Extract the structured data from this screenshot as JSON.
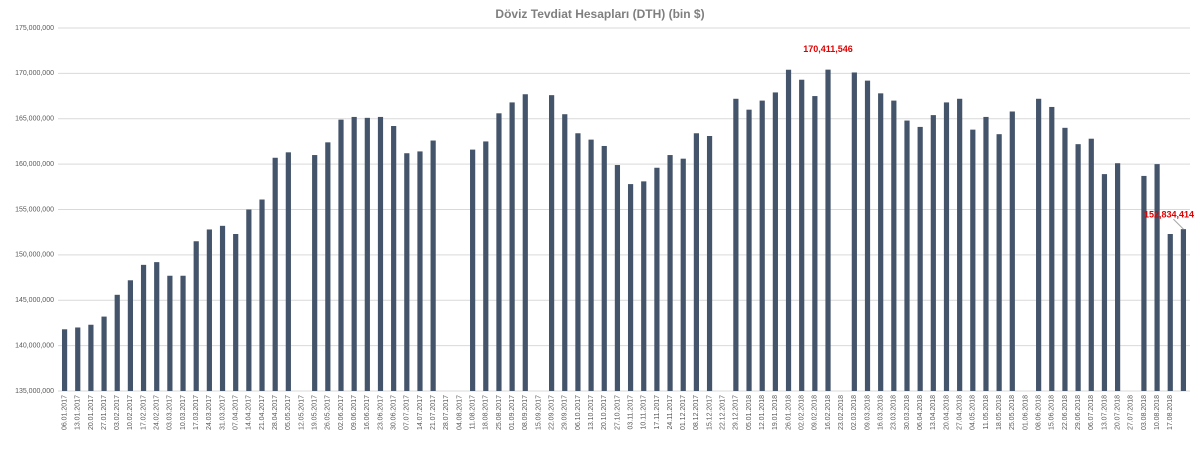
{
  "chart_data": {
    "type": "bar",
    "title": "Döviz Tevdiat Hesapları (DTH) (bin $)",
    "categories": [
      "06.01.2017",
      "13.01.2017",
      "20.01.2017",
      "27.01.2017",
      "03.02.2017",
      "10.02.2017",
      "17.02.2017",
      "24.02.2017",
      "03.03.2017",
      "10.03.2017",
      "17.03.2017",
      "24.03.2017",
      "31.03.2017",
      "07.04.2017",
      "14.04.2017",
      "21.04.2017",
      "28.04.2017",
      "05.05.2017",
      "12.05.2017",
      "19.05.2017",
      "26.05.2017",
      "02.06.2017",
      "09.06.2017",
      "16.06.2017",
      "23.06.2017",
      "30.06.2017",
      "07.07.2017",
      "14.07.2017",
      "21.07.2017",
      "28.07.2017",
      "04.08.2017",
      "11.08.2017",
      "18.08.2017",
      "25.08.2017",
      "01.09.2017",
      "08.09.2017",
      "15.09.2017",
      "22.09.2017",
      "29.09.2017",
      "06.10.2017",
      "13.10.2017",
      "20.10.2017",
      "27.10.2017",
      "03.11.2017",
      "10.11.2017",
      "17.11.2017",
      "24.11.2017",
      "01.12.2017",
      "08.12.2017",
      "15.12.2017",
      "22.12.2017",
      "29.12.2017",
      "05.01.2018",
      "12.01.2018",
      "19.01.2018",
      "26.01.2018",
      "02.02.2018",
      "09.02.2018",
      "16.02.2018",
      "23.02.2018",
      "02.03.2018",
      "09.03.2018",
      "16.03.2018",
      "23.03.2018",
      "30.03.2018",
      "06.04.2018",
      "13.04.2018",
      "20.04.2018",
      "27.04.2018",
      "04.05.2018",
      "11.05.2018",
      "18.05.2018",
      "25.05.2018",
      "01.06.2018",
      "08.06.2018",
      "15.06.2018",
      "22.06.2018",
      "29.06.2018",
      "06.07.2018",
      "13.07.2018",
      "20.07.2018",
      "27.07.2018",
      "03.08.2018",
      "10.08.2018",
      "17.08.2018",
      null
    ],
    "values": [
      141800000,
      142000000,
      142300000,
      143200000,
      145600000,
      147200000,
      148900000,
      149200000,
      147700000,
      147700000,
      151500000,
      152800000,
      153200000,
      152300000,
      155000000,
      156100000,
      160700000,
      161300000,
      null,
      161000000,
      162400000,
      164900000,
      165200000,
      165100000,
      165200000,
      164200000,
      161200000,
      161400000,
      162600000,
      null,
      null,
      161600000,
      162500000,
      165600000,
      166800000,
      167700000,
      null,
      167600000,
      165500000,
      163400000,
      162700000,
      162000000,
      159900000,
      157800000,
      158100000,
      159600000,
      161000000,
      160600000,
      163400000,
      163100000,
      null,
      167200000,
      166000000,
      167000000,
      167900000,
      170400000,
      169300000,
      167500000,
      170411546,
      null,
      170100000,
      169200000,
      167800000,
      167000000,
      164800000,
      164100000,
      165400000,
      166800000,
      167200000,
      163800000,
      165200000,
      163300000,
      165800000,
      null,
      167200000,
      166300000,
      164000000,
      162200000,
      162800000,
      158900000,
      160100000,
      null,
      158700000,
      160000000,
      152300000,
      152834414
    ],
    "value_labels": [
      null,
      null,
      null,
      null,
      null,
      null,
      null,
      null,
      null,
      null,
      null,
      null,
      null,
      null,
      null,
      null,
      null,
      null,
      null,
      null,
      null,
      null,
      null,
      null,
      null,
      null,
      null,
      null,
      null,
      null,
      null,
      null,
      null,
      null,
      null,
      null,
      null,
      null,
      null,
      null,
      null,
      null,
      null,
      null,
      null,
      null,
      null,
      null,
      null,
      null,
      null,
      null,
      null,
      null,
      null,
      null,
      null,
      null,
      "170,411,546",
      null,
      null,
      null,
      null,
      null,
      null,
      null,
      null,
      null,
      null,
      null,
      null,
      null,
      null,
      null,
      null,
      null,
      null,
      null,
      null,
      null,
      null,
      null,
      null,
      null,
      null,
      "152,834,414"
    ],
    "color": "#44546a",
    "label_color": "#e00000",
    "ylim": [
      135000000,
      175000000
    ],
    "yticks": [
      {
        "value": 135000000,
        "label": "135,000,000"
      },
      {
        "value": 140000000,
        "label": "140,000,000"
      },
      {
        "value": 145000000,
        "label": "145,000,000"
      },
      {
        "value": 150000000,
        "label": "150,000,000"
      },
      {
        "value": 155000000,
        "label": "155,000,000"
      },
      {
        "value": 160000000,
        "label": "160,000,000"
      },
      {
        "value": 165000000,
        "label": "165,000,000"
      },
      {
        "value": 170000000,
        "label": "170,000,000"
      },
      {
        "value": 175000000,
        "label": "175,000,000"
      }
    ],
    "grid": true
  }
}
